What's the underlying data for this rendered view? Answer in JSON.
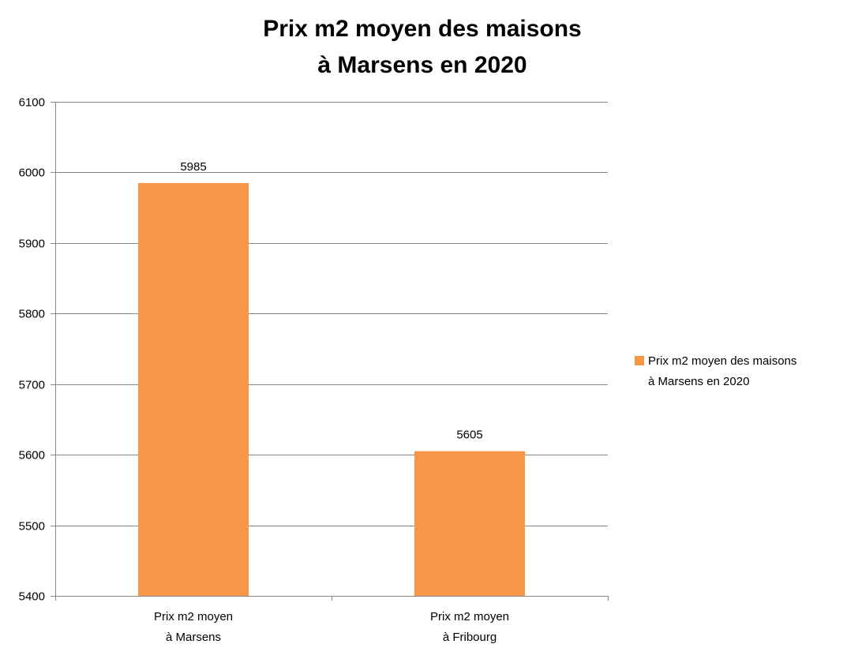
{
  "chart_data": {
    "type": "bar",
    "title_lines": [
      "Prix m2 moyen des maisons",
      "à Marsens en 2020"
    ],
    "categories": [
      [
        "Prix m2 moyen",
        "à Marsens"
      ],
      [
        "Prix m2 moyen",
        "à Fribourg"
      ]
    ],
    "series": [
      {
        "name_lines": [
          "Prix m2 moyen des maisons",
          "à Marsens en 2020"
        ],
        "values": [
          5985,
          5605
        ],
        "data_labels": [
          "5985",
          "5605"
        ],
        "color": "#F79646"
      }
    ],
    "ylim": [
      5400,
      6100
    ],
    "yticks": [
      5400,
      5500,
      5600,
      5700,
      5800,
      5900,
      6000,
      6100
    ],
    "ytick_labels": [
      "5400",
      "5500",
      "5600",
      "5700",
      "5800",
      "5900",
      "6000",
      "6100"
    ],
    "grid": true,
    "legend_position": "right",
    "gridline_color": "#868686"
  }
}
